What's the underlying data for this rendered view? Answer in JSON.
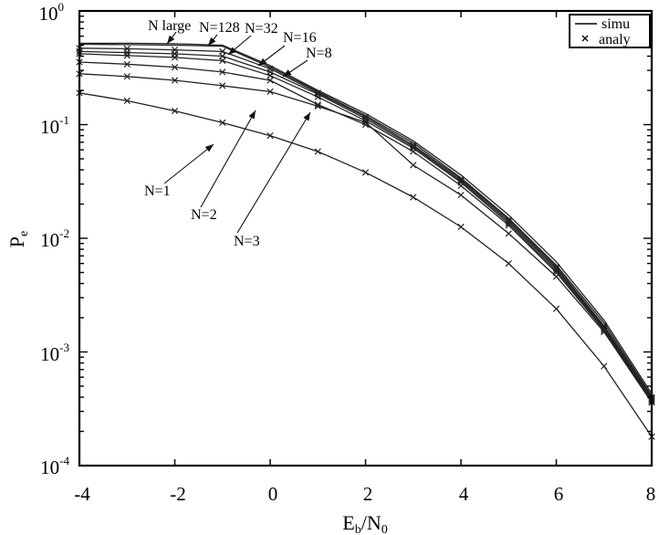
{
  "chart_data": {
    "type": "line",
    "title": "",
    "xlabel": "E_b/N_0",
    "xlabel_main": "E",
    "xlabel_sub1": "b",
    "xlabel_mid": "/N",
    "xlabel_sub2": "0",
    "ylabel": "P_e",
    "ylabel_main": "P",
    "ylabel_sub": "e",
    "yscale": "log",
    "xlim": [
      -4,
      8
    ],
    "ylim": [
      0.0001,
      1
    ],
    "grid": false,
    "legend_position": "upper right",
    "x_ticks": [
      -4,
      -2,
      0,
      2,
      4,
      6,
      8
    ],
    "x_tick_labels": [
      "-4",
      "-2",
      "0",
      "2",
      "4",
      "6",
      "8"
    ],
    "y_ticks": [
      {
        "base": "10",
        "exp": "0",
        "value": 1
      },
      {
        "base": "10",
        "exp": "-1",
        "value": 0.1
      },
      {
        "base": "10",
        "exp": "-2",
        "value": 0.01
      },
      {
        "base": "10",
        "exp": "-3",
        "value": 0.001
      },
      {
        "base": "10",
        "exp": "-4",
        "value": 0.0001
      }
    ],
    "legend": [
      {
        "label": "simu",
        "style": "solid-line"
      },
      {
        "label": "analy",
        "style": "x-marker"
      }
    ],
    "x": [
      -4,
      -3,
      -2,
      -1,
      0,
      1,
      2,
      3,
      4,
      5,
      6,
      7,
      8
    ],
    "series": [
      {
        "name": "N large",
        "type": "simu",
        "values": [
          0.52,
          0.52,
          0.515,
          0.5,
          0.33,
          0.2,
          0.125,
          0.072,
          0.036,
          0.016,
          0.0062,
          0.0019,
          0.00043
        ]
      },
      {
        "name": "N=128",
        "type": "simu",
        "values": [
          0.51,
          0.505,
          0.5,
          0.49,
          0.32,
          0.195,
          0.12,
          0.069,
          0.034,
          0.015,
          0.0058,
          0.0018,
          0.00041
        ]
      },
      {
        "name": "N=32",
        "type": "simu+analy",
        "values": [
          0.47,
          0.465,
          0.455,
          0.44,
          0.31,
          0.19,
          0.117,
          0.066,
          0.033,
          0.0145,
          0.0056,
          0.0017,
          0.0004
        ]
      },
      {
        "name": "N=16",
        "type": "simu+analy",
        "values": [
          0.44,
          0.43,
          0.42,
          0.4,
          0.29,
          0.185,
          0.113,
          0.064,
          0.032,
          0.014,
          0.0054,
          0.00165,
          0.00039
        ]
      },
      {
        "name": "N=8",
        "type": "simu+analy",
        "values": [
          0.42,
          0.405,
          0.39,
          0.365,
          0.27,
          0.175,
          0.108,
          0.062,
          0.031,
          0.0135,
          0.0052,
          0.0016,
          0.00038
        ]
      },
      {
        "name": "N=3",
        "type": "simu+analy",
        "values": [
          0.355,
          0.34,
          0.32,
          0.29,
          0.245,
          0.15,
          0.1,
          0.058,
          0.029,
          0.013,
          0.005,
          0.00155,
          0.00037
        ]
      },
      {
        "name": "N=2",
        "type": "simu+analy",
        "values": [
          0.28,
          0.265,
          0.245,
          0.22,
          0.195,
          0.145,
          0.105,
          0.044,
          0.024,
          0.011,
          0.0046,
          0.0015,
          0.00036
        ]
      },
      {
        "name": "N=1",
        "type": "simu+analy",
        "values": [
          0.19,
          0.162,
          0.132,
          0.104,
          0.08,
          0.058,
          0.038,
          0.023,
          0.0126,
          0.006,
          0.0024,
          0.00075,
          0.00018
        ]
      }
    ],
    "annotations": [
      {
        "text": "N large",
        "target": "N large"
      },
      {
        "text": "N=128",
        "target": "N=128"
      },
      {
        "text": "N=32",
        "target": "N=32"
      },
      {
        "text": "N=16",
        "target": "N=16"
      },
      {
        "text": "N=8",
        "target": "N=8"
      },
      {
        "text": "N=1",
        "target": "N=1"
      },
      {
        "text": "N=2",
        "target": "N=2"
      },
      {
        "text": "N=3",
        "target": "N=3"
      }
    ]
  }
}
